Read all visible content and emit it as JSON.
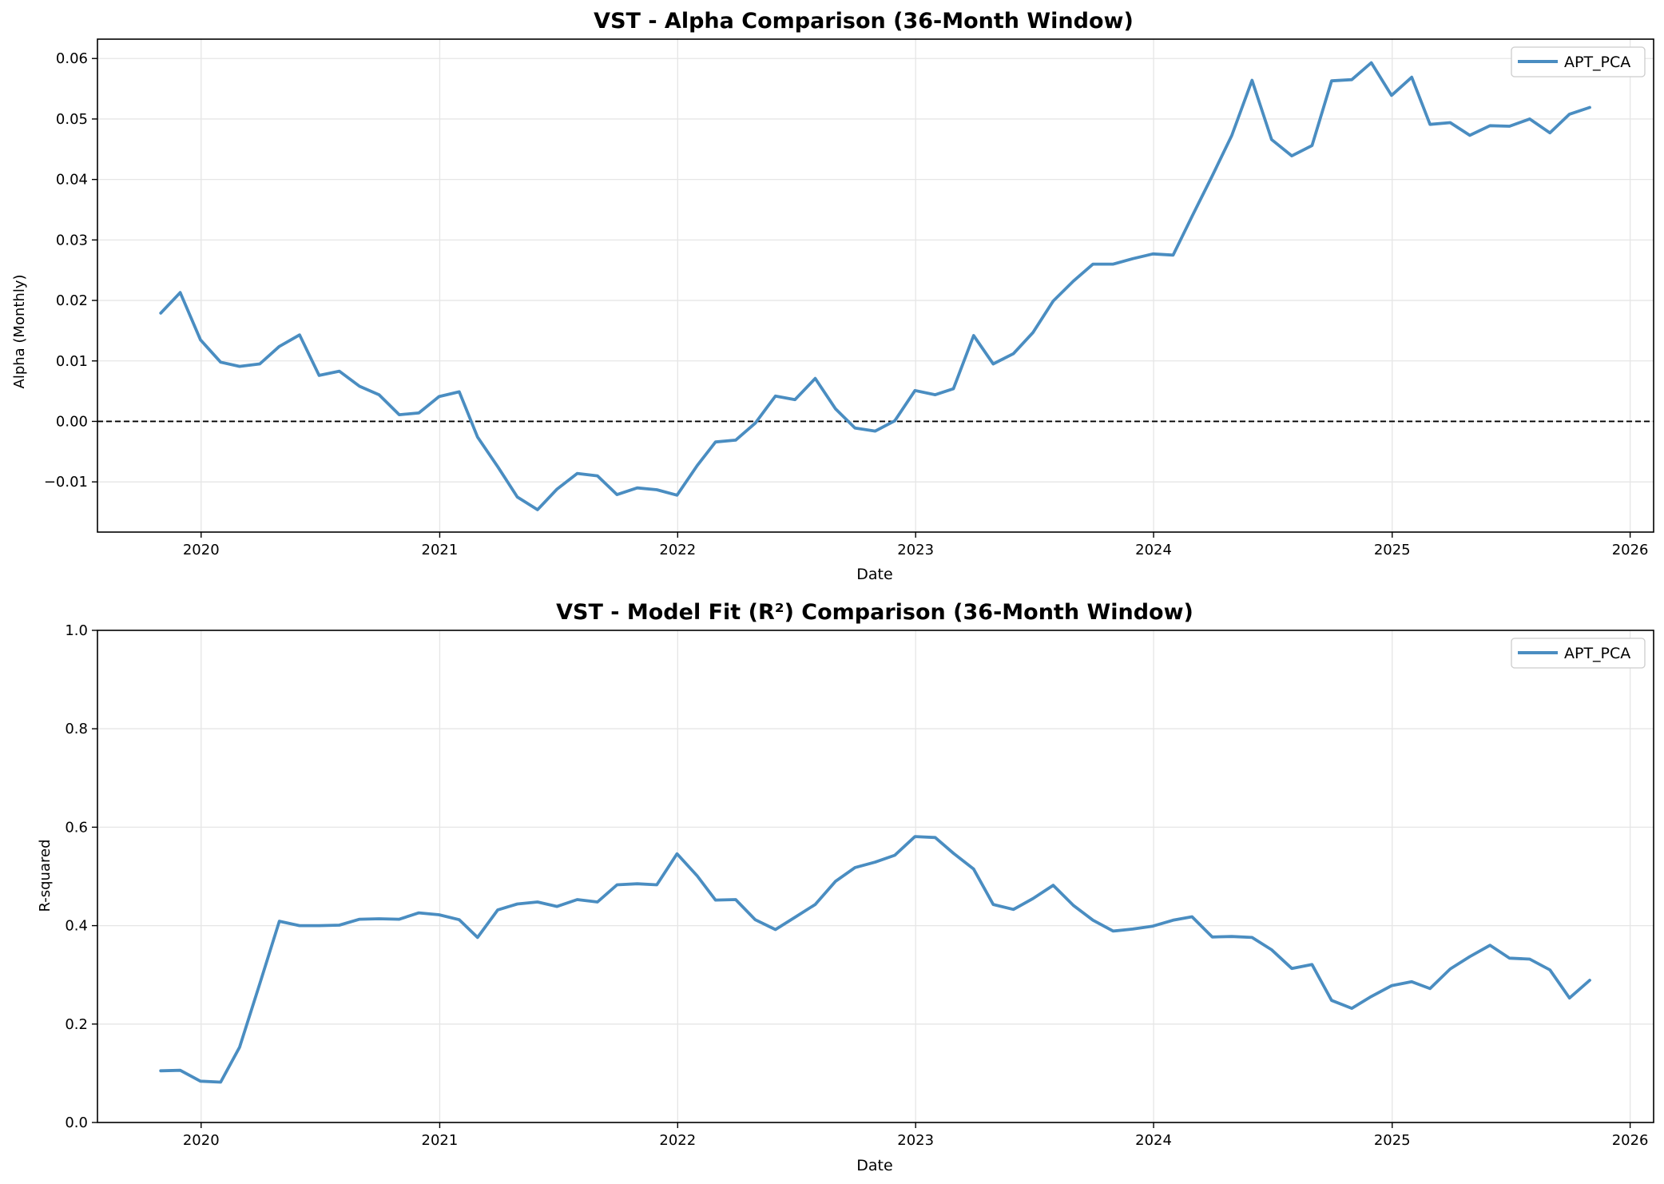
{
  "chart_data": [
    {
      "type": "line",
      "title": "VST - Alpha Comparison (36-Month Window)",
      "xlabel": "Date",
      "ylabel": "Alpha (Monthly)",
      "xlim": [
        "2019-07-26",
        "2026-02-06"
      ],
      "ylim": [
        -0.0183,
        0.0632
      ],
      "xticks": [
        "2020",
        "2021",
        "2022",
        "2023",
        "2024",
        "2025",
        "2026"
      ],
      "yticks": [
        "−0.01",
        "0.00",
        "0.01",
        "0.02",
        "0.03",
        "0.04",
        "0.05",
        "0.06"
      ],
      "ytick_values": [
        -0.01,
        0.0,
        0.01,
        0.02,
        0.03,
        0.04,
        0.05,
        0.06
      ],
      "grid": true,
      "reference_line": {
        "y": 0,
        "style": "dashed",
        "color": "#000000"
      },
      "legend": {
        "position": "top-right"
      },
      "x": [
        "2019-10-31",
        "2019-11-30",
        "2019-12-31",
        "2020-01-31",
        "2020-02-29",
        "2020-03-31",
        "2020-04-30",
        "2020-05-31",
        "2020-06-30",
        "2020-07-31",
        "2020-08-31",
        "2020-09-30",
        "2020-10-31",
        "2020-11-30",
        "2020-12-31",
        "2021-01-31",
        "2021-02-28",
        "2021-03-31",
        "2021-04-30",
        "2021-05-31",
        "2021-06-30",
        "2021-07-31",
        "2021-08-31",
        "2021-09-30",
        "2021-10-31",
        "2021-11-30",
        "2021-12-31",
        "2022-01-31",
        "2022-02-28",
        "2022-03-31",
        "2022-04-30",
        "2022-05-31",
        "2022-06-30",
        "2022-07-31",
        "2022-08-31",
        "2022-09-30",
        "2022-10-31",
        "2022-11-30",
        "2022-12-31",
        "2023-01-31",
        "2023-02-28",
        "2023-03-31",
        "2023-04-30",
        "2023-05-31",
        "2023-06-30",
        "2023-07-31",
        "2023-08-31",
        "2023-09-30",
        "2023-10-31",
        "2023-11-30",
        "2023-12-31",
        "2024-01-31",
        "2024-02-29",
        "2024-03-31",
        "2024-04-30",
        "2024-05-31",
        "2024-06-30",
        "2024-07-31",
        "2024-08-31",
        "2024-09-30",
        "2024-10-31",
        "2024-11-30",
        "2024-12-31",
        "2025-01-31",
        "2025-02-28",
        "2025-03-31",
        "2025-04-30",
        "2025-05-31",
        "2025-06-30",
        "2025-07-31",
        "2025-08-31",
        "2025-09-30",
        "2025-10-31"
      ],
      "series": [
        {
          "name": "APT_PCA",
          "color": "#4a8dc1",
          "values": [
            0.0179,
            0.0213,
            0.0135,
            0.0098,
            0.0091,
            0.0095,
            0.0124,
            0.0143,
            0.0076,
            0.0083,
            0.0058,
            0.0044,
            0.0011,
            0.0014,
            0.0041,
            0.0049,
            -0.0026,
            -0.0075,
            -0.0125,
            -0.0146,
            -0.0112,
            -0.0086,
            -0.009,
            -0.0121,
            -0.011,
            -0.0113,
            -0.0122,
            -0.0073,
            -0.0034,
            -0.0031,
            -0.0003,
            0.0042,
            0.0036,
            0.0071,
            0.0021,
            -0.0011,
            -0.0016,
            0.0001,
            0.0051,
            0.0044,
            0.0054,
            0.0142,
            0.0095,
            0.0112,
            0.0147,
            0.0199,
            0.0232,
            0.026,
            0.026,
            0.0269,
            0.0277,
            0.0275,
            0.0339,
            0.0406,
            0.0473,
            0.0564,
            0.0466,
            0.0439,
            0.0456,
            0.0563,
            0.0565,
            0.0593,
            0.0539,
            0.0569,
            0.0491,
            0.0494,
            0.0473,
            0.0489,
            0.0488,
            0.05,
            0.0477,
            0.0508,
            0.0519
          ]
        }
      ]
    },
    {
      "type": "line",
      "title": "VST - Model Fit (R²) Comparison (36-Month Window)",
      "xlabel": "Date",
      "ylabel": "R-squared",
      "xlim": [
        "2019-07-26",
        "2026-02-06"
      ],
      "ylim": [
        0,
        1.0
      ],
      "xticks": [
        "2020",
        "2021",
        "2022",
        "2023",
        "2024",
        "2025",
        "2026"
      ],
      "yticks": [
        "0.0",
        "0.2",
        "0.4",
        "0.6",
        "0.8",
        "1.0"
      ],
      "ytick_values": [
        0.0,
        0.2,
        0.4,
        0.6,
        0.8,
        1.0
      ],
      "grid": true,
      "legend": {
        "position": "top-right"
      },
      "x": [
        "2019-10-31",
        "2019-11-30",
        "2019-12-31",
        "2020-01-31",
        "2020-02-29",
        "2020-03-31",
        "2020-04-30",
        "2020-05-31",
        "2020-06-30",
        "2020-07-31",
        "2020-08-31",
        "2020-09-30",
        "2020-10-31",
        "2020-11-30",
        "2020-12-31",
        "2021-01-31",
        "2021-02-28",
        "2021-03-31",
        "2021-04-30",
        "2021-05-31",
        "2021-06-30",
        "2021-07-31",
        "2021-08-31",
        "2021-09-30",
        "2021-10-31",
        "2021-11-30",
        "2021-12-31",
        "2022-01-31",
        "2022-02-28",
        "2022-03-31",
        "2022-04-30",
        "2022-05-31",
        "2022-06-30",
        "2022-07-31",
        "2022-08-31",
        "2022-09-30",
        "2022-10-31",
        "2022-11-30",
        "2022-12-31",
        "2023-01-31",
        "2023-02-28",
        "2023-03-31",
        "2023-04-30",
        "2023-05-31",
        "2023-06-30",
        "2023-07-31",
        "2023-08-31",
        "2023-09-30",
        "2023-10-31",
        "2023-11-30",
        "2023-12-31",
        "2024-01-31",
        "2024-02-29",
        "2024-03-31",
        "2024-04-30",
        "2024-05-31",
        "2024-06-30",
        "2024-07-31",
        "2024-08-31",
        "2024-09-30",
        "2024-10-31",
        "2024-11-30",
        "2024-12-31",
        "2025-01-31",
        "2025-02-28",
        "2025-03-31",
        "2025-04-30",
        "2025-05-31",
        "2025-06-30",
        "2025-07-31",
        "2025-08-31",
        "2025-09-30",
        "2025-10-31"
      ],
      "series": [
        {
          "name": "APT_PCA",
          "color": "#4a8dc1",
          "values": [
            0.105,
            0.106,
            0.084,
            0.082,
            0.153,
            0.282,
            0.409,
            0.4,
            0.4,
            0.401,
            0.413,
            0.414,
            0.413,
            0.426,
            0.422,
            0.412,
            0.376,
            0.432,
            0.444,
            0.448,
            0.439,
            0.453,
            0.448,
            0.483,
            0.485,
            0.483,
            0.546,
            0.501,
            0.452,
            0.453,
            0.412,
            0.392,
            0.417,
            0.443,
            0.49,
            0.518,
            0.529,
            0.543,
            0.581,
            0.579,
            0.547,
            0.515,
            0.443,
            0.433,
            0.455,
            0.482,
            0.441,
            0.411,
            0.389,
            0.393,
            0.399,
            0.411,
            0.418,
            0.377,
            0.378,
            0.376,
            0.351,
            0.313,
            0.321,
            0.248,
            0.232,
            0.256,
            0.278,
            0.286,
            0.272,
            0.312,
            0.337,
            0.36,
            0.334,
            0.332,
            0.31,
            0.253,
            0.289
          ]
        }
      ]
    }
  ]
}
